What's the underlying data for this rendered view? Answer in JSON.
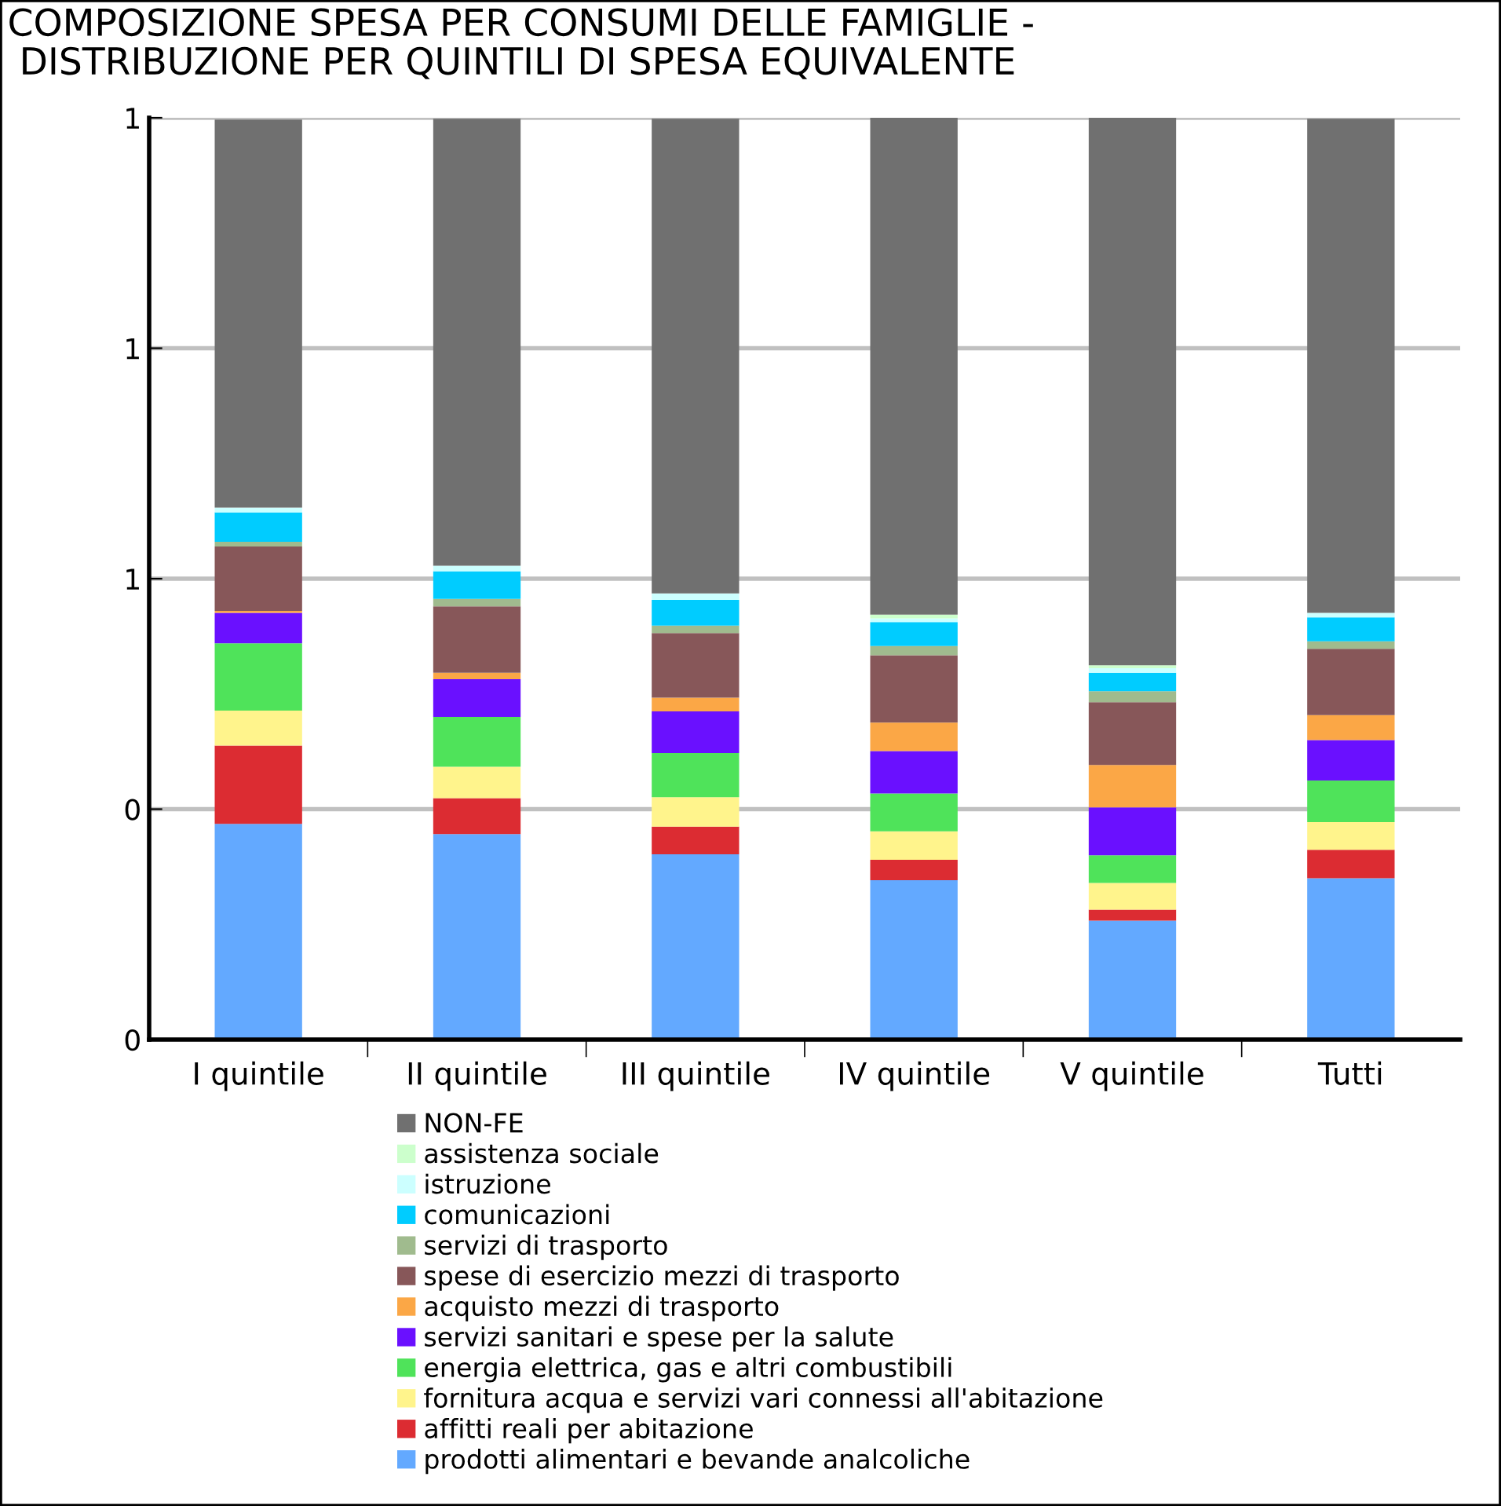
{
  "chart_data": {
    "type": "bar",
    "stacked": true,
    "title": "COMPOSIZIONE SPESA PER CONSUMI DELLE FAMIGLIE -\n DISTRIBUZIONE PER QUINTILI DI SPESA EQUIVALENTE",
    "categories": [
      "I quintile",
      "II quintile",
      "III quintile",
      "IV quintile",
      "V quintile",
      "Tutti"
    ],
    "series": [
      {
        "name": "prodotti alimentari e bevande analcoliche",
        "color": "#63a9ff",
        "values": [
          0.234,
          0.223,
          0.201,
          0.173,
          0.129,
          0.175
        ]
      },
      {
        "name": "affitti reali per abitazione",
        "color": "#dc2c32",
        "values": [
          0.085,
          0.039,
          0.03,
          0.022,
          0.012,
          0.031
        ]
      },
      {
        "name": "fornitura acqua e servizi vari connessi all'abitazione",
        "color": "#fff48c",
        "values": [
          0.038,
          0.034,
          0.032,
          0.031,
          0.029,
          0.03
        ]
      },
      {
        "name": "energia elettrica, gas e altri combustibili",
        "color": "#4fe35a",
        "values": [
          0.073,
          0.054,
          0.048,
          0.041,
          0.03,
          0.045
        ]
      },
      {
        "name": "servizi sanitari e spese per la salute",
        "color": "#6a10ff",
        "values": [
          0.033,
          0.041,
          0.045,
          0.046,
          0.052,
          0.044
        ]
      },
      {
        "name": "acquisto mezzi di trasporto",
        "color": "#fba746",
        "values": [
          0.002,
          0.007,
          0.015,
          0.031,
          0.046,
          0.027
        ]
      },
      {
        "name": "spese di esercizio mezzi di trasporto",
        "color": "#875759",
        "values": [
          0.07,
          0.072,
          0.07,
          0.073,
          0.068,
          0.072
        ]
      },
      {
        "name": "servizi di trasporto",
        "color": "#a0bb8e",
        "values": [
          0.005,
          0.008,
          0.008,
          0.01,
          0.012,
          0.008
        ]
      },
      {
        "name": "comunicazioni",
        "color": "#00ccff",
        "values": [
          0.032,
          0.03,
          0.028,
          0.026,
          0.02,
          0.026
        ]
      },
      {
        "name": "istruzione",
        "color": "#ccffff",
        "values": [
          0.005,
          0.006,
          0.007,
          0.004,
          0.005,
          0.005
        ]
      },
      {
        "name": "assistenza sociale",
        "color": "#ccffcc",
        "values": [
          null,
          null,
          null,
          0.004,
          0.003,
          null
        ]
      },
      {
        "name": "NON-FE",
        "color": "#707070",
        "values": [
          0.421,
          0.485,
          0.515,
          0.539,
          0.594,
          0.536
        ]
      }
    ],
    "ylim": [
      0,
      1
    ],
    "yticks": [
      {
        "value": 0,
        "label": "0"
      },
      {
        "value": 0.25,
        "label": "0"
      },
      {
        "value": 0.5,
        "label": "1"
      },
      {
        "value": 0.75,
        "label": "1"
      },
      {
        "value": 1,
        "label": "1"
      }
    ],
    "grid": "y",
    "legend": "bottom"
  }
}
